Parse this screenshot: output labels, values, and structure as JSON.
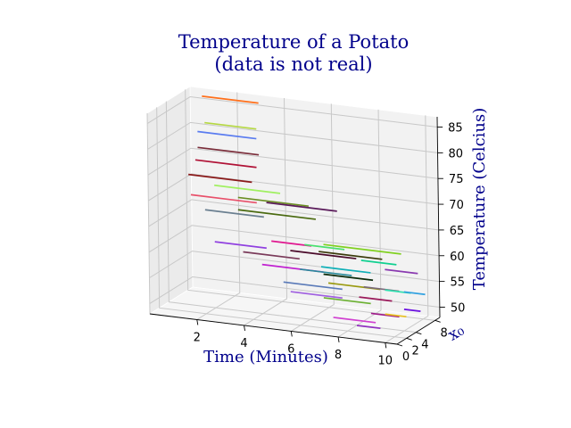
{
  "chart_data": {
    "type": "line",
    "projection": "3d",
    "title_line1": "Temperature of a Potato",
    "title_line2": "(data is not real)",
    "xlabel": "Time (Minutes)",
    "ylabel": "x₀",
    "zlabel": "Temperature (Celcius)",
    "x_ticks": [
      "2",
      "4",
      "6",
      "8",
      "10"
    ],
    "y_ticks": [
      "0",
      "2",
      "4",
      "8"
    ],
    "z_ticks": [
      "50",
      "55",
      "60",
      "65",
      "70",
      "75",
      "80",
      "85"
    ],
    "xlim": [
      0,
      10.5
    ],
    "ylim": [
      0,
      9
    ],
    "zlim": [
      48,
      87
    ],
    "grid": true,
    "title_color": "#00008b",
    "label_color": "#00008b",
    "series": [
      {
        "x": [
          0.5,
          2.9
        ],
        "y": [
          9,
          9
        ],
        "z": [
          85.4,
          85.4
        ],
        "color": "#ff6f1a"
      },
      {
        "x": [
          0.8,
          3.0
        ],
        "y": [
          8,
          8
        ],
        "z": [
          81.0,
          81.0
        ],
        "color": "#b5d842"
      },
      {
        "x": [
          0.7,
          3.2
        ],
        "y": [
          7,
          7
        ],
        "z": [
          79.8,
          79.8
        ],
        "color": "#5a7cf0"
      },
      {
        "x": [
          0.9,
          3.5
        ],
        "y": [
          6,
          6
        ],
        "z": [
          77.4,
          77.4
        ],
        "color": "#7a2d3a"
      },
      {
        "x": [
          1.0,
          3.6
        ],
        "y": [
          5,
          5
        ],
        "z": [
          75.6,
          75.6
        ],
        "color": "#b01236"
      },
      {
        "x": [
          0.9,
          3.6
        ],
        "y": [
          4,
          4
        ],
        "z": [
          73.3,
          73.3
        ],
        "color": "#8b1a1a"
      },
      {
        "x": [
          1.2,
          4.0
        ],
        "y": [
          3,
          3
        ],
        "z": [
          70.1,
          70.1
        ],
        "color": "#e8506a"
      },
      {
        "x": [
          2.2,
          5.0
        ],
        "y": [
          3,
          3
        ],
        "z": [
          72.5,
          72.5
        ],
        "color": "#a0f060"
      },
      {
        "x": [
          3.0,
          6.0
        ],
        "y": [
          4,
          4
        ],
        "z": [
          70.0,
          70.0
        ],
        "color": "#6b8e23"
      },
      {
        "x": [
          2.0,
          4.5
        ],
        "y": [
          2,
          2
        ],
        "z": [
          68.2,
          68.2
        ],
        "color": "#6a7f90"
      },
      {
        "x": [
          3.2,
          6.5
        ],
        "y": [
          3,
          3
        ],
        "z": [
          68.3,
          68.3
        ],
        "color": "#4a6a10"
      },
      {
        "x": [
          4.0,
          7.0
        ],
        "y": [
          5,
          5
        ],
        "z": [
          69.0,
          69.0
        ],
        "color": "#5a1a5a"
      },
      {
        "x": [
          2.6,
          4.8
        ],
        "y": [
          1,
          1
        ],
        "z": [
          62.9,
          62.9
        ],
        "color": "#9040e0"
      },
      {
        "x": [
          4.6,
          6.3
        ],
        "y": [
          3,
          3
        ],
        "z": [
          63.0,
          63.0
        ],
        "color": "#e01890"
      },
      {
        "x": [
          3.8,
          6.2
        ],
        "y": [
          1,
          1
        ],
        "z": [
          61.6,
          61.6
        ],
        "color": "#7a3a5a"
      },
      {
        "x": [
          5.8,
          7.5
        ],
        "y": [
          4,
          4
        ],
        "z": [
          62.4,
          62.4
        ],
        "color": "#4ae070"
      },
      {
        "x": [
          5.4,
          8.2
        ],
        "y": [
          3,
          3
        ],
        "z": [
          61.6,
          61.6
        ],
        "color": "#4a0a2a"
      },
      {
        "x": [
          4.6,
          7.2
        ],
        "y": [
          1,
          1
        ],
        "z": [
          59.6,
          59.6
        ],
        "color": "#c020d0"
      },
      {
        "x": [
          6.4,
          9.1
        ],
        "y": [
          4,
          4
        ],
        "z": [
          61.4,
          61.4
        ],
        "color": "#3a3a0a"
      },
      {
        "x": [
          6.2,
          9.5
        ],
        "y": [
          6,
          6
        ],
        "z": [
          61.5,
          61.5
        ],
        "color": "#80d020"
      },
      {
        "x": [
          5.8,
          8.0
        ],
        "y": [
          3,
          3
        ],
        "z": [
          58.2,
          58.2
        ],
        "color": "#2a8a9a"
      },
      {
        "x": [
          6.5,
          8.6
        ],
        "y": [
          4,
          4
        ],
        "z": [
          58.5,
          58.5
        ],
        "color": "#10b0b8"
      },
      {
        "x": [
          5.5,
          8.0
        ],
        "y": [
          1,
          1
        ],
        "z": [
          56.7,
          56.7
        ],
        "color": "#5a7ab8"
      },
      {
        "x": [
          6.8,
          8.9
        ],
        "y": [
          3,
          3
        ],
        "z": [
          57.8,
          57.8
        ],
        "color": "#0a2a0a"
      },
      {
        "x": [
          8.0,
          9.5
        ],
        "y": [
          5,
          5
        ],
        "z": [
          60.0,
          60.0
        ],
        "color": "#10d090"
      },
      {
        "x": [
          7.0,
          9.2
        ],
        "y": [
          3,
          3
        ],
        "z": [
          56.2,
          56.2
        ],
        "color": "#9a9a10"
      },
      {
        "x": [
          5.8,
          8.0
        ],
        "y": [
          1,
          1
        ],
        "z": [
          55.0,
          55.0
        ],
        "color": "#a060e0"
      },
      {
        "x": [
          8.3,
          9.8
        ],
        "y": [
          4,
          4
        ],
        "z": [
          55.6,
          55.6
        ],
        "color": "#7a6a7a"
      },
      {
        "x": [
          8.8,
          10.2
        ],
        "y": [
          6,
          6
        ],
        "z": [
          58.1,
          58.1
        ],
        "color": "#8a3ab0"
      },
      {
        "x": [
          7.0,
          9.0
        ],
        "y": [
          2,
          2
        ],
        "z": [
          53.9,
          53.9
        ],
        "color": "#6ab030"
      },
      {
        "x": [
          8.3,
          9.7
        ],
        "y": [
          3,
          3
        ],
        "z": [
          54.2,
          54.2
        ],
        "color": "#9a1a5a"
      },
      {
        "x": [
          7.6,
          9.4
        ],
        "y": [
          1,
          1
        ],
        "z": [
          51.0,
          51.0
        ],
        "color": "#d040d0"
      },
      {
        "x": [
          9.0,
          10.1
        ],
        "y": [
          5,
          5
        ],
        "z": [
          54.8,
          54.8
        ],
        "color": "#30e0b0"
      },
      {
        "x": [
          8.8,
          10.0
        ],
        "y": [
          3,
          3
        ],
        "z": [
          51.3,
          51.3
        ],
        "color": "#a01a8a"
      },
      {
        "x": [
          9.6,
          10.5
        ],
        "y": [
          6,
          6
        ],
        "z": [
          54.2,
          54.2
        ],
        "color": "#30a0e0"
      },
      {
        "x": [
          8.6,
          9.6
        ],
        "y": [
          1,
          1
        ],
        "z": [
          50.0,
          50.0
        ],
        "color": "#9030c0"
      },
      {
        "x": [
          9.4,
          10.3
        ],
        "y": [
          3,
          3
        ],
        "z": [
          51.5,
          51.5
        ],
        "color": "#e8c020"
      },
      {
        "x": [
          9.8,
          10.5
        ],
        "y": [
          5,
          5
        ],
        "z": [
          51.5,
          51.5
        ],
        "color": "#6a10e0"
      }
    ]
  }
}
